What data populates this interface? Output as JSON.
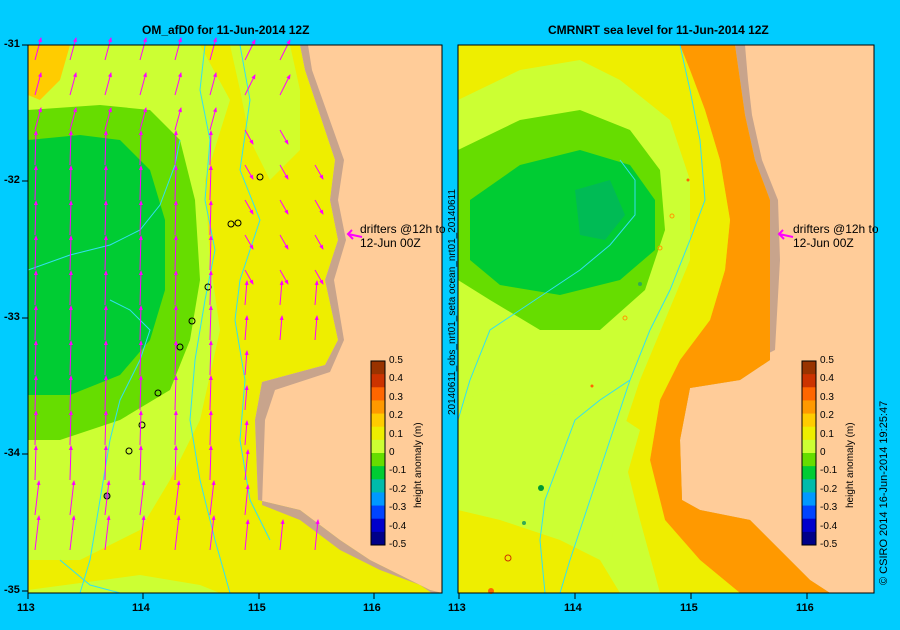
{
  "colors": {
    "background": "#00ccff",
    "land": "#ffcc99",
    "coast": "#c8a48c",
    "arrow": "#ff00ff",
    "contour": "#33e0f0"
  },
  "left_panel": {
    "title": "OM_afD0 for 11-Jun-2014 12Z",
    "annotation_line1": "drifters @12h to",
    "annotation_line2": "12-Jun 00Z"
  },
  "right_panel": {
    "title": "CMRNRT sea level  for 11-Jun-2014 12Z",
    "annotation_line1": "drifters @12h to",
    "annotation_line2": "12-Jun 00Z",
    "side_label": "20140611_obs_nrt01_seta     ocean_nrt01_20140611"
  },
  "axes": {
    "y_ticks": [
      "-31",
      "-32",
      "-33",
      "-34",
      "-35"
    ],
    "x_ticks": [
      "113",
      "114",
      "115",
      "116"
    ]
  },
  "colorbar": {
    "label": "height anomaly (m)",
    "ticks": [
      "0.5",
      "0.4",
      "0.3",
      "0.2",
      "0.1",
      "0",
      "-0.1",
      "-0.2",
      "-0.3",
      "-0.4",
      "-0.5"
    ],
    "colors": [
      "#993300",
      "#cc3300",
      "#ff6600",
      "#ff9900",
      "#ffcc00",
      "#eeee00",
      "#ccff33",
      "#66dd00",
      "#00cc33",
      "#00bbaa",
      "#0099ff",
      "#0044ff",
      "#0000cc",
      "#000088"
    ]
  },
  "credit": "© CSIRO 2014   16-Jun-2014 19:25:47"
}
